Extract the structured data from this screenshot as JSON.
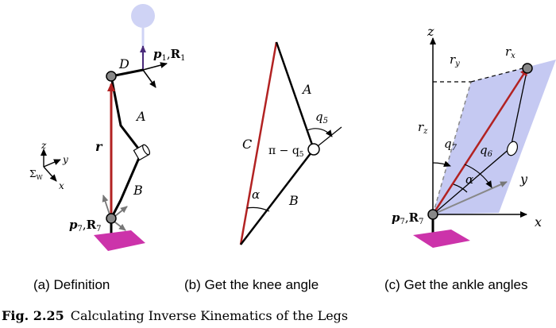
{
  "colors": {
    "red": "#b22222",
    "magenta": "#cc33aa",
    "lavender": "#c5c9f2",
    "head": "#cfd3f5",
    "gray_arrow": "#777777",
    "dark_purple": "#4a2a7a"
  },
  "panel_a": {
    "label_p1": "p",
    "label_p1_sub": "1",
    "label_R1": "R",
    "label_R1_sub": "1",
    "label_D": "D",
    "label_A": "A",
    "label_B": "B",
    "label_r": "r",
    "label_p7": "p",
    "label_p7_sub": "7",
    "label_R7": "R",
    "label_R7_sub": "7",
    "frame_z": "z",
    "frame_y": "y",
    "frame_x": "x",
    "frame_sigma": "Σ",
    "frame_sigma_sub": "W",
    "caption": "(a) Definition"
  },
  "panel_b": {
    "label_A": "A",
    "label_B": "B",
    "label_C": "C",
    "label_q5": "q",
    "label_q5_sub": "5",
    "label_pi": "π − q",
    "label_pi_sub": "5",
    "label_alpha": "α",
    "caption": "(b) Get the knee angle"
  },
  "panel_c": {
    "label_z": "z",
    "label_x": "x",
    "label_y": "y",
    "label_ry": "r",
    "label_ry_sub": "y",
    "label_rx": "r",
    "label_rx_sub": "x",
    "label_rz": "r",
    "label_rz_sub": "z",
    "label_q7": "q",
    "label_q7_sub": "7",
    "label_q6": "q",
    "label_q6_sub": "6",
    "label_alpha": "α",
    "label_p7": "p",
    "label_p7_sub": "7",
    "label_R7": "R",
    "label_R7_sub": "7",
    "caption": "(c) Get the ankle angles"
  },
  "figure_caption": {
    "number": "Fig. 2.25",
    "text": "Calculating Inverse Kinematics of the Legs"
  }
}
